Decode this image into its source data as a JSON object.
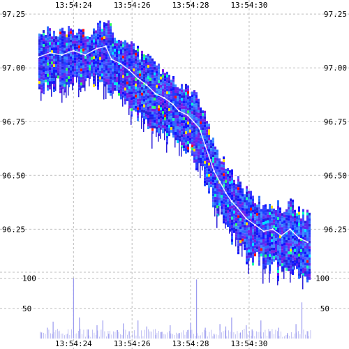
{
  "chart_data": {
    "type": "heatmap",
    "title": "",
    "xlabel": "",
    "ylabel": "",
    "time_ticks": [
      "13:54:24",
      "13:54:26",
      "13:54:28",
      "13:54:30"
    ],
    "price_ticks": [
      "97.25",
      "97.00",
      "96.75",
      "96.50",
      "96.25"
    ],
    "volume_ticks": [
      "100",
      "50"
    ],
    "price_range": [
      96.05,
      97.27
    ],
    "volume_range": [
      0,
      110
    ],
    "time_range_seconds": [
      22.8,
      32.1
    ],
    "grid": true,
    "price_series": {
      "name": "",
      "t": [
        22.8,
        23.2,
        23.6,
        24.0,
        24.4,
        24.8,
        25.1,
        25.3,
        25.6,
        25.9,
        26.2,
        26.5,
        26.8,
        27.1,
        27.4,
        27.6,
        27.9,
        28.1,
        28.3,
        28.5,
        28.8,
        29.0,
        29.2,
        29.4,
        29.6,
        29.9,
        30.2,
        30.5,
        30.8,
        31.1,
        31.4,
        31.7,
        32.0
      ],
      "price": [
        97.05,
        97.07,
        97.06,
        97.08,
        97.06,
        97.09,
        97.1,
        97.04,
        97.02,
        96.99,
        96.95,
        96.92,
        96.88,
        96.86,
        96.83,
        96.8,
        96.78,
        96.75,
        96.72,
        96.64,
        96.52,
        96.47,
        96.42,
        96.38,
        96.35,
        96.3,
        96.27,
        96.24,
        96.25,
        96.22,
        96.25,
        96.21,
        96.19
      ]
    },
    "volume_series": {
      "name": "",
      "t": [
        22.9,
        23.1,
        23.3,
        23.5,
        23.8,
        24.0,
        24.2,
        24.5,
        24.8,
        25.0,
        25.2,
        25.5,
        25.7,
        25.9,
        26.2,
        26.5,
        26.8,
        27.0,
        27.3,
        27.6,
        27.9,
        28.0,
        28.2,
        28.5,
        28.8,
        29.0,
        29.2,
        29.4,
        29.7,
        29.9,
        30.1,
        30.4,
        30.7,
        31.0,
        31.3,
        31.6,
        31.8,
        32.0
      ],
      "volume": [
        10,
        18,
        28,
        12,
        8,
        100,
        35,
        15,
        22,
        30,
        8,
        14,
        25,
        12,
        30,
        20,
        6,
        11,
        22,
        9,
        14,
        26,
        98,
        18,
        8,
        24,
        20,
        35,
        10,
        22,
        15,
        30,
        12,
        18,
        9,
        24,
        60,
        12
      ]
    }
  }
}
